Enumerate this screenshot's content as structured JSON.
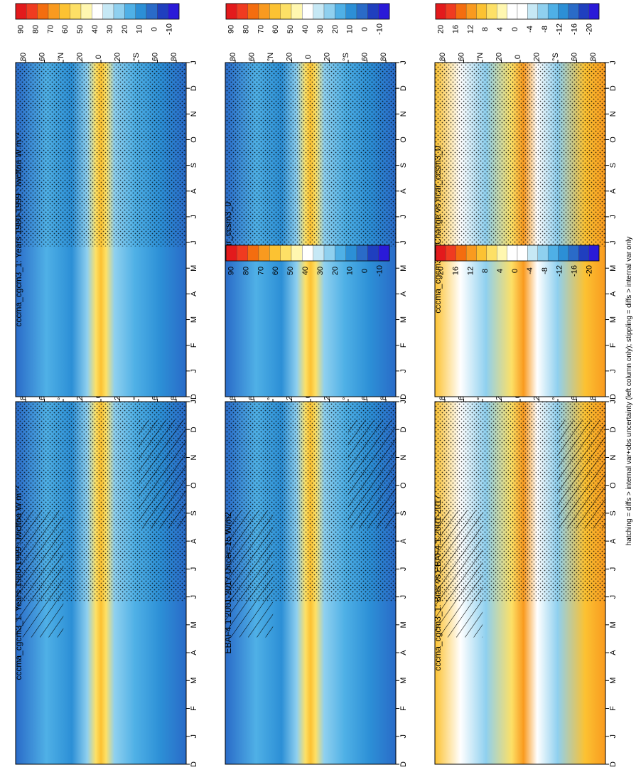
{
  "figure": {
    "footnote": "hatching = diffs > internal var+obs uncertainty (left column only); stippling = diffs > internal var only"
  },
  "months": [
    "D",
    "J",
    "F",
    "M",
    "A",
    "M",
    "J",
    "J",
    "A",
    "S",
    "O",
    "N",
    "D",
    "J"
  ],
  "lat_labels": [
    "80",
    "60",
    "°N",
    "20",
    "0",
    "20",
    "°S",
    "60",
    "80"
  ],
  "colorbars": {
    "absolute": {
      "labels": [
        "90",
        "80",
        "70",
        "60",
        "50",
        "40",
        "30",
        "20",
        "10",
        "0",
        "-10"
      ],
      "colors": [
        "#e31a1c",
        "#f03b20",
        "#f46d0f",
        "#f99a1f",
        "#fcc232",
        "#fde066",
        "#fff7b0",
        "#ffffff",
        "#c6e8f5",
        "#8fd0ef",
        "#4fb0e6",
        "#2c8fd6",
        "#2a6bc8",
        "#1f3fbf",
        "#2a1ad8"
      ]
    },
    "difference": {
      "labels": [
        "20",
        "16",
        "12",
        "8",
        "4",
        "0",
        "-4",
        "-8",
        "-12",
        "-16",
        "-20"
      ],
      "colors": [
        "#e31a1c",
        "#f03b20",
        "#f46d0f",
        "#f99a1f",
        "#fcc232",
        "#fde066",
        "#fff7b0",
        "#ffffff",
        "#ffffff",
        "#c6e8f5",
        "#8fd0ef",
        "#4fb0e6",
        "#2c8fd6",
        "#2a6bc8",
        "#1f3fbf",
        "#2a1ad8"
      ]
    }
  },
  "chart_data": [
    {
      "type": "heatmap",
      "title": "cccma_cgcm3_1: Years 1980-1999 : lwcftoa W m⁻²",
      "x": [
        "D",
        "J",
        "F",
        "M",
        "A",
        "M",
        "J",
        "J",
        "A",
        "S",
        "O",
        "N",
        "D",
        "J"
      ],
      "y": [
        "80",
        "60",
        "°N",
        "20",
        "0",
        "20",
        "°S",
        "60",
        "80"
      ],
      "colorbar": "absolute",
      "hatched": true,
      "stippled": true
    },
    {
      "type": "heatmap",
      "title": "cccma_cgcm3_1: Years 1980-1999 : lwcftoa W m⁻²",
      "x": [
        "D",
        "J",
        "F",
        "M",
        "A",
        "M",
        "J",
        "J",
        "A",
        "S",
        "O",
        "N",
        "D",
        "J"
      ],
      "y": [
        "80",
        "60",
        "°N",
        "20",
        "0",
        "20",
        "°S",
        "60",
        "80"
      ],
      "colorbar": "absolute",
      "hatched": false,
      "stippled": true
    },
    {
      "type": "heatmap",
      "title": "EBAF4.1 2001-2017 Uncer=15 W/m2",
      "x": [
        "D",
        "J",
        "F",
        "M",
        "A",
        "M",
        "J",
        "J",
        "A",
        "S",
        "O",
        "N",
        "D",
        "J"
      ],
      "y": [
        "80",
        "60",
        "°N",
        "20",
        "0",
        "20",
        "°S",
        "60",
        "80"
      ],
      "colorbar": "absolute",
      "hatched": true,
      "stippled": true
    },
    {
      "type": "heatmap",
      "title": "ncar_ccsm3_0",
      "x": [
        "D",
        "J",
        "F",
        "M",
        "A",
        "M",
        "J",
        "J",
        "A",
        "S",
        "O",
        "N",
        "D",
        "J"
      ],
      "y": [
        "80",
        "60",
        "°N",
        "20",
        "0",
        "20",
        "°S",
        "60",
        "80"
      ],
      "colorbar": "absolute",
      "hatched": false,
      "stippled": true
    },
    {
      "type": "heatmap",
      "title": "cccma_cgcm3_1: Bias vs EBAF4.1 2001-2017",
      "x": [
        "D",
        "J",
        "F",
        "M",
        "A",
        "M",
        "J",
        "J",
        "A",
        "S",
        "O",
        "N",
        "D",
        "J"
      ],
      "y": [
        "80",
        "60",
        "°N",
        "20",
        "0",
        "20",
        "°S",
        "60",
        "80"
      ],
      "colorbar": "difference",
      "hatched": true,
      "stippled": true
    },
    {
      "type": "heatmap",
      "title": "cccma_cgcm3_1: Change vs ncar_ccsm3_0",
      "x": [
        "D",
        "J",
        "F",
        "M",
        "A",
        "M",
        "J",
        "J",
        "A",
        "S",
        "O",
        "N",
        "D",
        "J"
      ],
      "y": [
        "80",
        "60",
        "°N",
        "20",
        "0",
        "20",
        "°S",
        "60",
        "80"
      ],
      "colorbar": "difference",
      "hatched": false,
      "stippled": true
    }
  ]
}
